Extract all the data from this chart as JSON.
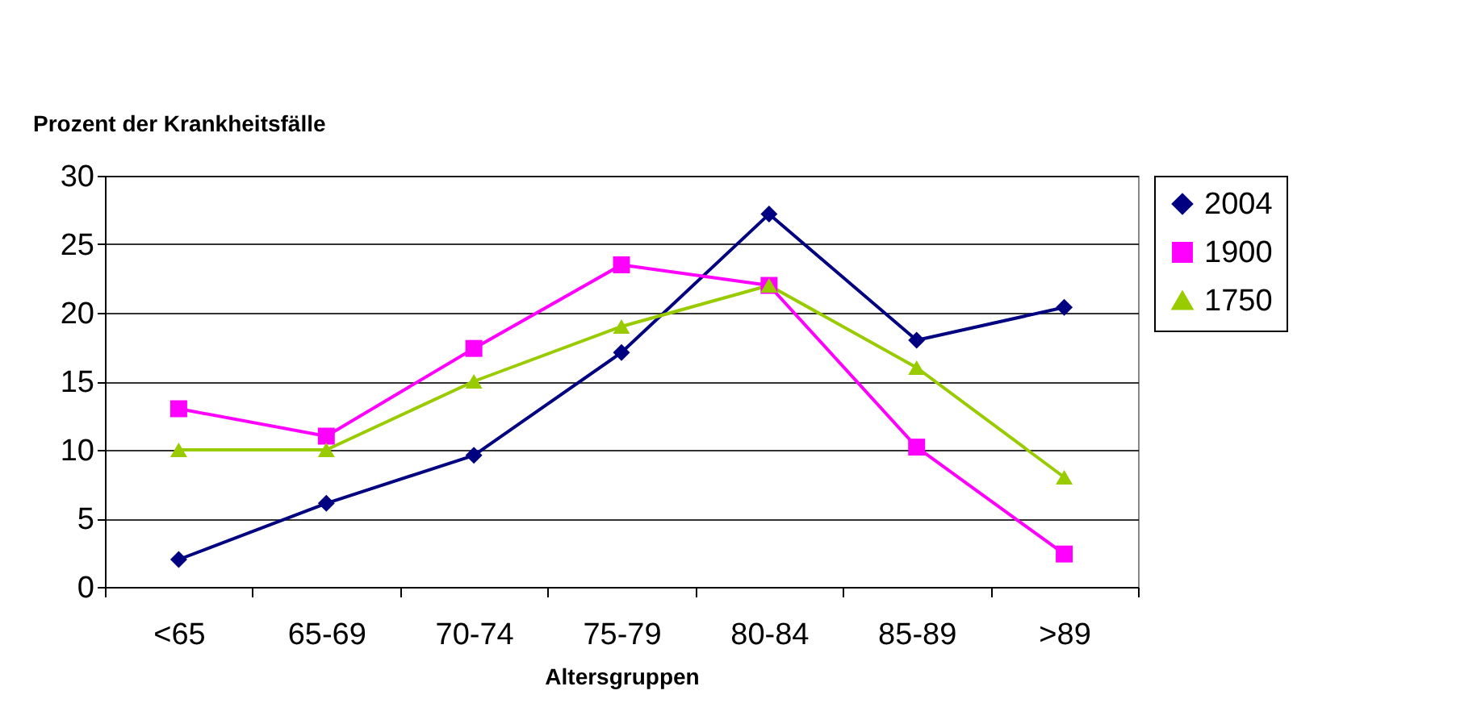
{
  "chart_data": {
    "type": "line",
    "ylabel": "Prozent der Krankheitsfälle",
    "xlabel": "Altersgruppen",
    "categories": [
      "<65",
      "65-69",
      "70-74",
      "75-79",
      "80-84",
      "85-89",
      ">89"
    ],
    "series": [
      {
        "name": "2004",
        "color": "#000080",
        "marker": "diamond",
        "values": [
          2,
          6.1,
          9.6,
          17.1,
          27.2,
          18,
          20.4
        ]
      },
      {
        "name": "1900",
        "color": "#ff00ff",
        "marker": "square",
        "values": [
          13,
          11,
          17.4,
          23.5,
          22,
          10.2,
          2.4
        ]
      },
      {
        "name": "1750",
        "color": "#99cc00",
        "marker": "triangle",
        "values": [
          10,
          10,
          15,
          19,
          22,
          16,
          8
        ]
      }
    ],
    "ylim": [
      0,
      30
    ],
    "yticks": [
      0,
      5,
      10,
      15,
      20,
      25,
      30
    ],
    "grid": "y",
    "legend": "right",
    "line_style": "solid"
  }
}
